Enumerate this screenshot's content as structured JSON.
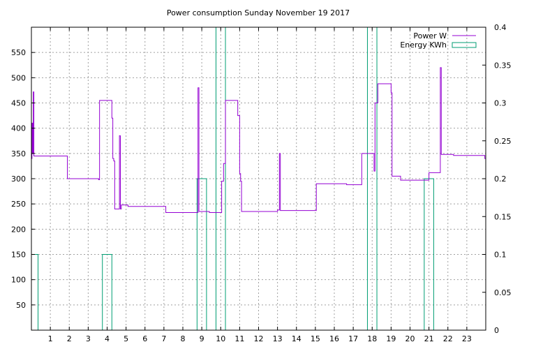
{
  "chart_data": {
    "type": "line",
    "title": "Power consumption Sunday November 19 2017",
    "x": {
      "range": [
        0,
        24
      ],
      "ticks": [
        1,
        2,
        3,
        4,
        5,
        6,
        7,
        8,
        9,
        10,
        11,
        12,
        13,
        14,
        15,
        16,
        17,
        18,
        19,
        20,
        21,
        22,
        23
      ],
      "grid": true
    },
    "y_left": {
      "range": [
        0,
        600
      ],
      "ticks": [
        50,
        100,
        150,
        200,
        250,
        300,
        350,
        400,
        450,
        500,
        550
      ],
      "grid": true
    },
    "y_right": {
      "range": [
        0,
        0.4
      ],
      "ticks": [
        0,
        0.05,
        0.1,
        0.15,
        0.2,
        0.25,
        0.3,
        0.35,
        0.4
      ]
    },
    "legend": {
      "placement": "top-right"
    },
    "series": [
      {
        "name": "Power W",
        "axis": "left",
        "style": "step",
        "color": "#9400d3",
        "points": [
          [
            0.0,
            340
          ],
          [
            0.03,
            410
          ],
          [
            0.06,
            350
          ],
          [
            0.1,
            472
          ],
          [
            0.13,
            345
          ],
          [
            1.85,
            345
          ],
          [
            1.9,
            300
          ],
          [
            3.55,
            298
          ],
          [
            3.6,
            455
          ],
          [
            4.2,
            455
          ],
          [
            4.25,
            420
          ],
          [
            4.3,
            340
          ],
          [
            4.35,
            335
          ],
          [
            4.4,
            240
          ],
          [
            4.6,
            240
          ],
          [
            4.65,
            385
          ],
          [
            4.7,
            240
          ],
          [
            4.75,
            248
          ],
          [
            5.1,
            245
          ],
          [
            7.05,
            245
          ],
          [
            7.1,
            233
          ],
          [
            8.75,
            233
          ],
          [
            8.8,
            480
          ],
          [
            8.85,
            235
          ],
          [
            9.35,
            235
          ],
          [
            9.4,
            233
          ],
          [
            10.0,
            233
          ],
          [
            10.05,
            295
          ],
          [
            10.15,
            330
          ],
          [
            10.25,
            455
          ],
          [
            10.85,
            455
          ],
          [
            10.9,
            425
          ],
          [
            11.0,
            310
          ],
          [
            11.05,
            295
          ],
          [
            11.1,
            235
          ],
          [
            12.9,
            235
          ],
          [
            13.0,
            238
          ],
          [
            13.1,
            350
          ],
          [
            13.15,
            237
          ],
          [
            15.0,
            237
          ],
          [
            15.05,
            290
          ],
          [
            16.6,
            290
          ],
          [
            16.65,
            288
          ],
          [
            17.4,
            288
          ],
          [
            17.45,
            350
          ],
          [
            18.05,
            350
          ],
          [
            18.1,
            315
          ],
          [
            18.15,
            450
          ],
          [
            18.25,
            450
          ],
          [
            18.3,
            488
          ],
          [
            18.95,
            488
          ],
          [
            19.0,
            470
          ],
          [
            19.05,
            305
          ],
          [
            19.45,
            305
          ],
          [
            19.5,
            297
          ],
          [
            20.95,
            297
          ],
          [
            21.0,
            312
          ],
          [
            21.55,
            312
          ],
          [
            21.6,
            520
          ],
          [
            21.65,
            348
          ],
          [
            22.25,
            348
          ],
          [
            22.3,
            346
          ],
          [
            23.9,
            346
          ],
          [
            23.95,
            340
          ]
        ]
      },
      {
        "name": "Energy KWh",
        "axis": "right",
        "style": "boxes",
        "color": "#009e73",
        "bars": [
          [
            0.1,
            0.1
          ],
          [
            1,
            0
          ],
          [
            2,
            0
          ],
          [
            3,
            0
          ],
          [
            4,
            0.1
          ],
          [
            5,
            0
          ],
          [
            6,
            0
          ],
          [
            7,
            0
          ],
          [
            8,
            0
          ],
          [
            9,
            0.2
          ],
          [
            10,
            0.4
          ],
          [
            11,
            0
          ],
          [
            12,
            0
          ],
          [
            13,
            0
          ],
          [
            14,
            0
          ],
          [
            15,
            0
          ],
          [
            16,
            0
          ],
          [
            17,
            0
          ],
          [
            18,
            0.4
          ],
          [
            19,
            0
          ],
          [
            20,
            0
          ],
          [
            21,
            0.2
          ],
          [
            22,
            0
          ],
          [
            23,
            0
          ]
        ]
      }
    ]
  }
}
